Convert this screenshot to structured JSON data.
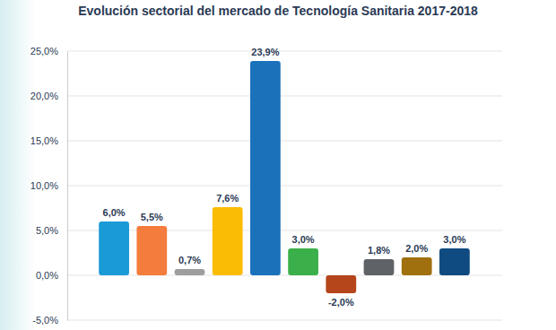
{
  "chart_data": {
    "type": "bar",
    "title": "Evolución sectorial del mercado de Tecnología Sanitaria 2017-2018",
    "categories": [
      null,
      null,
      null,
      null,
      null,
      null,
      null,
      null,
      null,
      null
    ],
    "values": [
      6.0,
      5.5,
      0.7,
      7.6,
      23.9,
      3.0,
      -2.0,
      1.8,
      2.0,
      3.0
    ],
    "value_labels": [
      "6,0%",
      "5,5%",
      "0,7%",
      "7,6%",
      "23,9%",
      "3,0%",
      "-2,0%",
      "1,8%",
      "2,0%",
      "3,0%"
    ],
    "colors": [
      "#1a9ad6",
      "#f47c3c",
      "#9e9e9e",
      "#fbbc05",
      "#1a72bb",
      "#3bb04a",
      "#b5451b",
      "#5f6368",
      "#a0700f",
      "#0f4a80"
    ],
    "ylim": [
      -5,
      25
    ],
    "yticks": [
      {
        "value": -5,
        "label": "-5,0%"
      },
      {
        "value": 0,
        "label": "0,0%"
      },
      {
        "value": 5,
        "label": "5,0%"
      },
      {
        "value": 10,
        "label": "10,0%"
      },
      {
        "value": 15,
        "label": "15,0%"
      },
      {
        "value": 20,
        "label": "20,0%"
      },
      {
        "value": 25,
        "label": "25,0%"
      }
    ],
    "grid": true,
    "data_labels": true
  }
}
